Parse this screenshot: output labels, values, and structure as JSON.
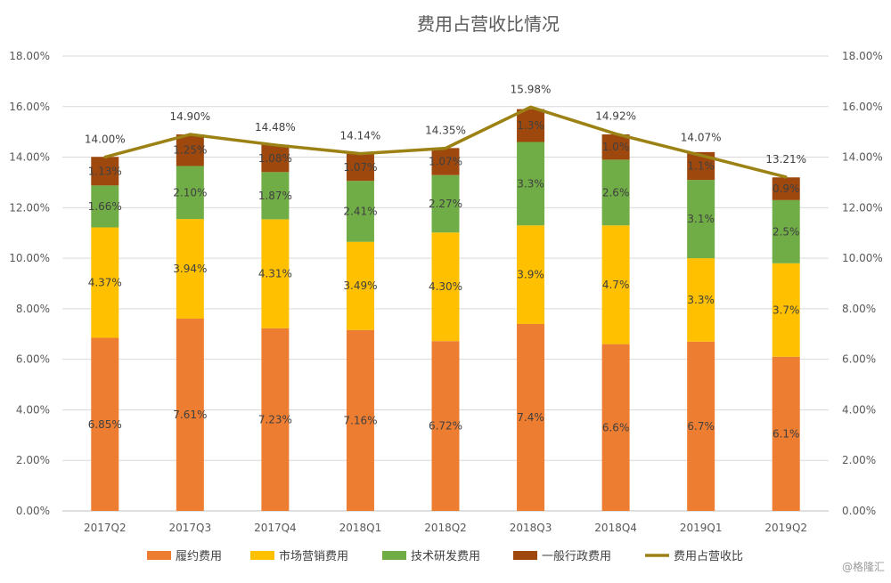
{
  "chart_data": {
    "type": "bar",
    "stacked": true,
    "title": "费用占营收比情况",
    "categories": [
      "2017Q2",
      "2017Q3",
      "2017Q4",
      "2018Q1",
      "2018Q2",
      "2018Q3",
      "2018Q4",
      "2019Q1",
      "2019Q2"
    ],
    "ylim": [
      0,
      18
    ],
    "y_ticks": [
      "0.00%",
      "2.00%",
      "4.00%",
      "6.00%",
      "8.00%",
      "10.00%",
      "12.00%",
      "14.00%",
      "16.00%",
      "18.00%"
    ],
    "series": [
      {
        "name": "履约费用",
        "color": "#ED7D31",
        "values": [
          6.85,
          7.61,
          7.23,
          7.16,
          6.72,
          7.4,
          6.6,
          6.7,
          6.1
        ],
        "labels": [
          "6.85%",
          "7.61%",
          "7.23%",
          "7.16%",
          "6.72%",
          "7.4%",
          "6.6%",
          "6.7%",
          "6.1%"
        ]
      },
      {
        "name": "市场营销费用",
        "color": "#FFC000",
        "values": [
          4.37,
          3.94,
          4.31,
          3.49,
          4.3,
          3.9,
          4.7,
          3.3,
          3.7
        ],
        "labels": [
          "4.37%",
          "3.94%",
          "4.31%",
          "3.49%",
          "4.30%",
          "3.9%",
          "4.7%",
          "3.3%",
          "3.7%"
        ]
      },
      {
        "name": "技术研发费用",
        "color": "#70AD47",
        "values": [
          1.66,
          2.1,
          1.87,
          2.41,
          2.27,
          3.3,
          2.6,
          3.1,
          2.5
        ],
        "labels": [
          "1.66%",
          "2.10%",
          "1.87%",
          "2.41%",
          "2.27%",
          "3.3%",
          "2.6%",
          "3.1%",
          "2.5%"
        ]
      },
      {
        "name": "一般行政费用",
        "color": "#9E480E",
        "values": [
          1.13,
          1.25,
          1.08,
          1.07,
          1.07,
          1.3,
          1.0,
          1.1,
          0.9
        ],
        "labels": [
          "1.13%",
          "1.25%",
          "1.08%",
          "1.07%",
          "1.07%",
          "1.3%",
          "1.0%",
          "1.1%",
          "0.9%"
        ]
      }
    ],
    "line": {
      "name": "费用占营收比",
      "color": "#9C8114",
      "values": [
        14.0,
        14.9,
        14.48,
        14.14,
        14.35,
        15.98,
        14.92,
        14.07,
        13.21
      ],
      "labels": [
        "14.00%",
        "14.90%",
        "14.48%",
        "14.14%",
        "14.35%",
        "15.98%",
        "14.92%",
        "14.07%",
        "13.21%"
      ]
    },
    "grid": true,
    "legend_position": "bottom",
    "secondary_axis": true
  },
  "watermark": "@格隆汇"
}
